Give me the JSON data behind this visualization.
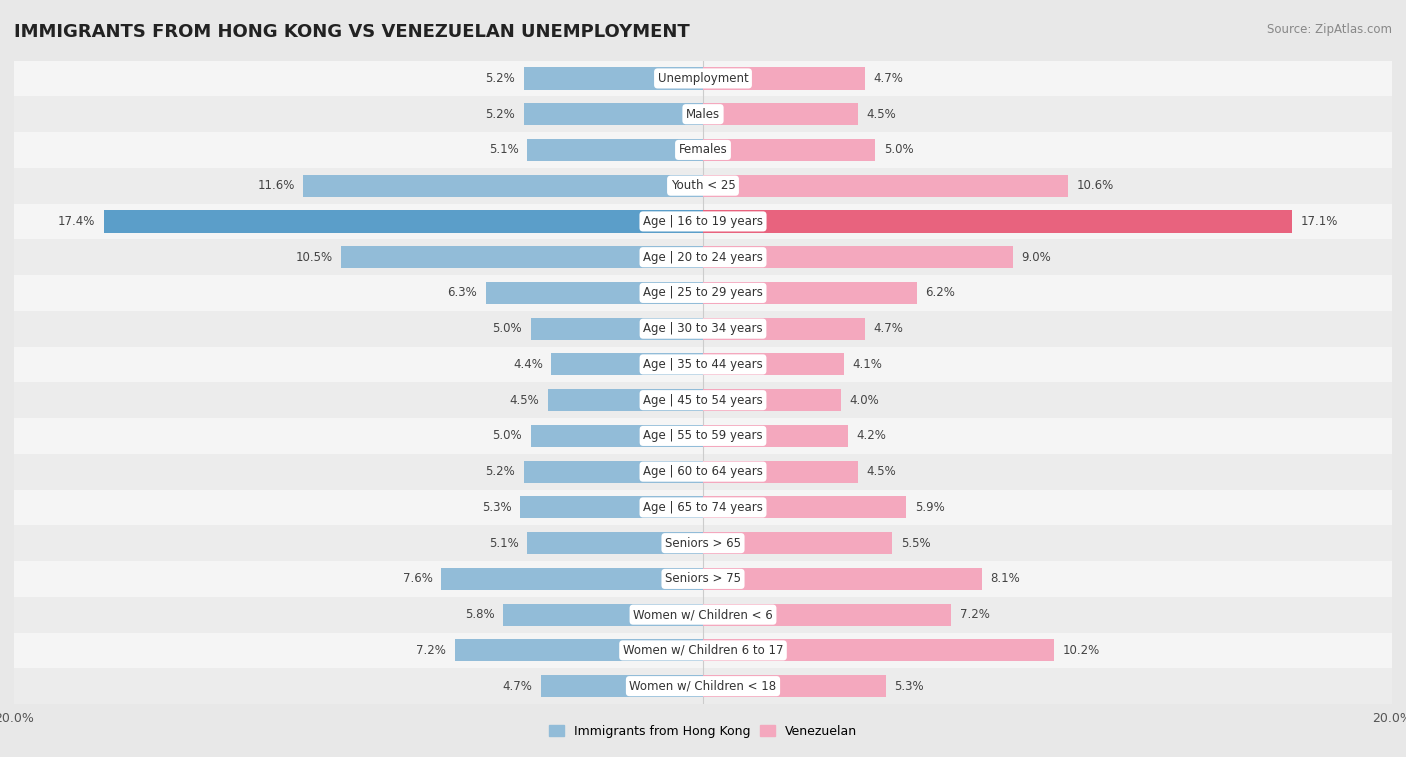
{
  "title": "IMMIGRANTS FROM HONG KONG VS VENEZUELAN UNEMPLOYMENT",
  "source": "Source: ZipAtlas.com",
  "categories": [
    "Unemployment",
    "Males",
    "Females",
    "Youth < 25",
    "Age | 16 to 19 years",
    "Age | 20 to 24 years",
    "Age | 25 to 29 years",
    "Age | 30 to 34 years",
    "Age | 35 to 44 years",
    "Age | 45 to 54 years",
    "Age | 55 to 59 years",
    "Age | 60 to 64 years",
    "Age | 65 to 74 years",
    "Seniors > 65",
    "Seniors > 75",
    "Women w/ Children < 6",
    "Women w/ Children 6 to 17",
    "Women w/ Children < 18"
  ],
  "hk_values": [
    5.2,
    5.2,
    5.1,
    11.6,
    17.4,
    10.5,
    6.3,
    5.0,
    4.4,
    4.5,
    5.0,
    5.2,
    5.3,
    5.1,
    7.6,
    5.8,
    7.2,
    4.7
  ],
  "ven_values": [
    4.7,
    4.5,
    5.0,
    10.6,
    17.1,
    9.0,
    6.2,
    4.7,
    4.1,
    4.0,
    4.2,
    4.5,
    5.9,
    5.5,
    8.1,
    7.2,
    10.2,
    5.3
  ],
  "hk_color": "#92bcd8",
  "ven_color": "#f4a8be",
  "hk_highlight_color": "#5b9ec9",
  "ven_highlight_color": "#e8637e",
  "xlim": 20.0,
  "bg_outer": "#e8e8e8",
  "bg_row_light": "#e8e8e8",
  "bg_row_white": "#f5f5f5",
  "legend_hk": "Immigrants from Hong Kong",
  "legend_ven": "Venezuelan",
  "title_fontsize": 13,
  "label_fontsize": 8.5,
  "value_fontsize": 8.5
}
